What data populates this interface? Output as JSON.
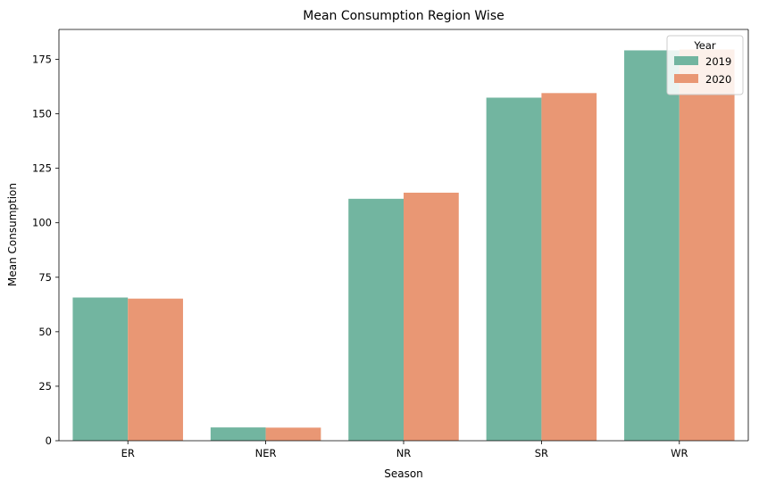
{
  "chart_data": {
    "type": "bar",
    "title": "Mean Consumption Region Wise",
    "xlabel": "Season",
    "ylabel": "Mean Consumption",
    "categories": [
      "ER",
      "NER",
      "NR",
      "SR",
      "WR"
    ],
    "series": [
      {
        "name": "2019",
        "color": "#72b5a0",
        "values": [
          65.7,
          6.1,
          111.0,
          157.4,
          179.1
        ]
      },
      {
        "name": "2020",
        "color": "#e99774",
        "values": [
          65.2,
          6.0,
          113.8,
          159.5,
          179.5
        ]
      }
    ],
    "ylim": [
      0,
      188.7
    ],
    "yticks": [
      "0",
      "25",
      "50",
      "75",
      "100",
      "125",
      "150",
      "175"
    ],
    "legend": {
      "title": "Year",
      "position": "top-right"
    },
    "grid": false
  }
}
